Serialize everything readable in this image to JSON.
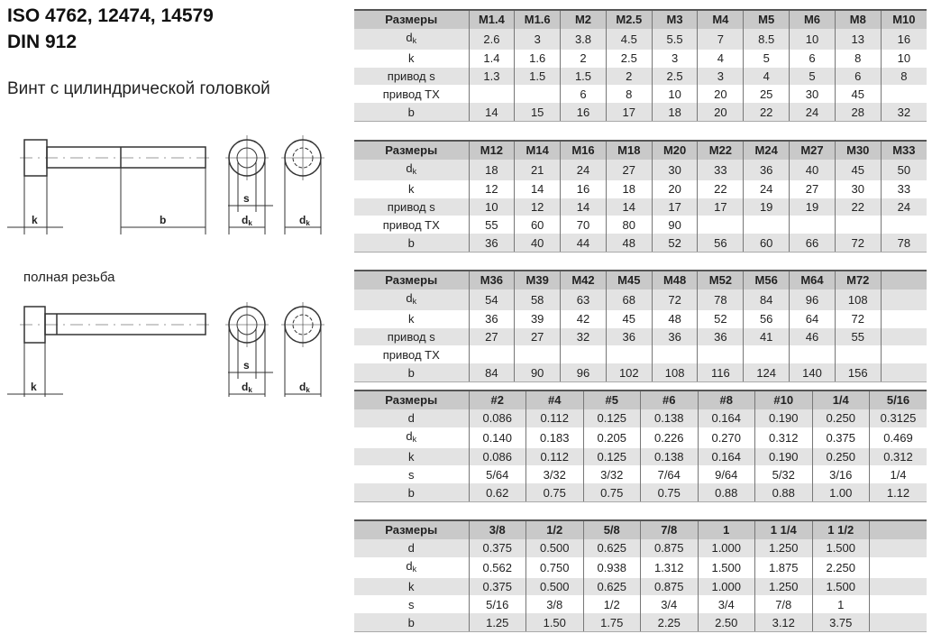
{
  "title_line1": "ISO 4762, 12474, 14579",
  "title_line2": "DIN 912",
  "subtitle": "Винт с цилиндрической головкой",
  "full_thread_label": "полная резьба",
  "drawing_labels": {
    "k": "k",
    "b": "b",
    "s": "s",
    "dk": "d",
    "dk_sub": "k"
  },
  "tables": [
    {
      "header": [
        "Размеры",
        "M1.4",
        "M1.6",
        "M2",
        "M2.5",
        "M3",
        "M4",
        "M5",
        "M6",
        "M8",
        "M10"
      ],
      "rows": [
        {
          "label": "d",
          "sub": "k",
          "values": [
            "2.6",
            "3",
            "3.8",
            "4.5",
            "5.5",
            "7",
            "8.5",
            "10",
            "13",
            "16"
          ]
        },
        {
          "label": "k",
          "values": [
            "1.4",
            "1.6",
            "2",
            "2.5",
            "3",
            "4",
            "5",
            "6",
            "8",
            "10"
          ]
        },
        {
          "label": "привод s",
          "values": [
            "1.3",
            "1.5",
            "1.5",
            "2",
            "2.5",
            "3",
            "4",
            "5",
            "6",
            "8"
          ]
        },
        {
          "label": "привод TX",
          "values": [
            "",
            "",
            "6",
            "8",
            "10",
            "20",
            "25",
            "30",
            "45",
            ""
          ]
        },
        {
          "label": "b",
          "values": [
            "14",
            "15",
            "16",
            "17",
            "18",
            "20",
            "22",
            "24",
            "28",
            "32"
          ]
        }
      ]
    },
    {
      "header": [
        "Размеры",
        "M12",
        "M14",
        "M16",
        "M18",
        "M20",
        "M22",
        "M24",
        "M27",
        "M30",
        "M33"
      ],
      "rows": [
        {
          "label": "d",
          "sub": "k",
          "values": [
            "18",
            "21",
            "24",
            "27",
            "30",
            "33",
            "36",
            "40",
            "45",
            "50"
          ]
        },
        {
          "label": "k",
          "values": [
            "12",
            "14",
            "16",
            "18",
            "20",
            "22",
            "24",
            "27",
            "30",
            "33"
          ]
        },
        {
          "label": "привод s",
          "values": [
            "10",
            "12",
            "14",
            "14",
            "17",
            "17",
            "19",
            "19",
            "22",
            "24"
          ]
        },
        {
          "label": "привод TX",
          "values": [
            "55",
            "60",
            "70",
            "80",
            "90",
            "",
            "",
            "",
            "",
            ""
          ]
        },
        {
          "label": "b",
          "values": [
            "36",
            "40",
            "44",
            "48",
            "52",
            "56",
            "60",
            "66",
            "72",
            "78"
          ]
        }
      ]
    },
    {
      "header": [
        "Размеры",
        "M36",
        "M39",
        "M42",
        "M45",
        "M48",
        "M52",
        "M56",
        "M64",
        "M72",
        ""
      ],
      "rows": [
        {
          "label": "d",
          "sub": "k",
          "values": [
            "54",
            "58",
            "63",
            "68",
            "72",
            "78",
            "84",
            "96",
            "108",
            ""
          ]
        },
        {
          "label": "k",
          "values": [
            "36",
            "39",
            "42",
            "45",
            "48",
            "52",
            "56",
            "64",
            "72",
            ""
          ]
        },
        {
          "label": "привод s",
          "values": [
            "27",
            "27",
            "32",
            "36",
            "36",
            "36",
            "41",
            "46",
            "55",
            ""
          ]
        },
        {
          "label": "привод TX",
          "values": [
            "",
            "",
            "",
            "",
            "",
            "",
            "",
            "",
            "",
            ""
          ]
        },
        {
          "label": "b",
          "values": [
            "84",
            "90",
            "96",
            "102",
            "108",
            "116",
            "124",
            "140",
            "156",
            ""
          ]
        }
      ]
    },
    {
      "header": [
        "Размеры",
        "#2",
        "#4",
        "#5",
        "#6",
        "#8",
        "#10",
        "1/4",
        "5/16"
      ],
      "rows": [
        {
          "label": "d",
          "values": [
            "0.086",
            "0.112",
            "0.125",
            "0.138",
            "0.164",
            "0.190",
            "0.250",
            "0.3125"
          ]
        },
        {
          "label": "d",
          "sub": "k",
          "values": [
            "0.140",
            "0.183",
            "0.205",
            "0.226",
            "0.270",
            "0.312",
            "0.375",
            "0.469"
          ]
        },
        {
          "label": "k",
          "values": [
            "0.086",
            "0.112",
            "0.125",
            "0.138",
            "0.164",
            "0.190",
            "0.250",
            "0.312"
          ]
        },
        {
          "label": "s",
          "values": [
            "5/64",
            "3/32",
            "3/32",
            "7/64",
            "9/64",
            "5/32",
            "3/16",
            "1/4"
          ]
        },
        {
          "label": "b",
          "values": [
            "0.62",
            "0.75",
            "0.75",
            "0.75",
            "0.88",
            "0.88",
            "1.00",
            "1.12"
          ]
        }
      ]
    },
    {
      "header": [
        "Размеры",
        "3/8",
        "1/2",
        "5/8",
        "7/8",
        "1",
        "1 1/4",
        "1 1/2",
        ""
      ],
      "rows": [
        {
          "label": "d",
          "values": [
            "0.375",
            "0.500",
            "0.625",
            "0.875",
            "1.000",
            "1.250",
            "1.500",
            ""
          ]
        },
        {
          "label": "d",
          "sub": "k",
          "values": [
            "0.562",
            "0.750",
            "0.938",
            "1.312",
            "1.500",
            "1.875",
            "2.250",
            ""
          ]
        },
        {
          "label": "k",
          "values": [
            "0.375",
            "0.500",
            "0.625",
            "0.875",
            "1.000",
            "1.250",
            "1.500",
            ""
          ]
        },
        {
          "label": "s",
          "values": [
            "5/16",
            "3/8",
            "1/2",
            "3/4",
            "3/4",
            "7/8",
            "1",
            ""
          ]
        },
        {
          "label": "b",
          "values": [
            "1.25",
            "1.50",
            "1.75",
            "2.25",
            "2.50",
            "3.12",
            "3.75",
            ""
          ]
        }
      ]
    }
  ]
}
